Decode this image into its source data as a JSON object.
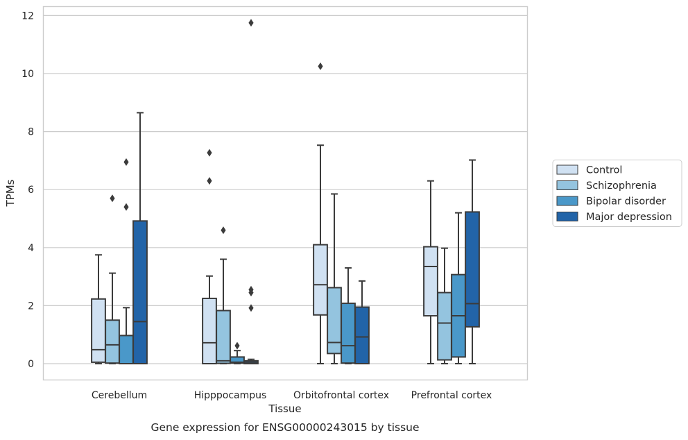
{
  "chart_data": {
    "type": "box",
    "caption": "Gene expression for ENSG00000243015 by tissue",
    "xlabel": "Tissue",
    "ylabel": "TPMs",
    "ylim": [
      -0.55,
      12.35
    ],
    "yticks": [
      0,
      2,
      4,
      6,
      8,
      10,
      12
    ],
    "ytick_labels": [
      "0",
      "2",
      "4",
      "6",
      "8",
      "10",
      "12"
    ],
    "grid": "horizontal",
    "legend_position": "right",
    "categories": [
      "Cerebellum",
      "Hipppocampus",
      "Orbitofrontal cortex",
      "Prefrontal cortex"
    ],
    "series": [
      {
        "name": "Control",
        "color": "#d0e1f2",
        "boxes": [
          {
            "whislo": 0.0,
            "q1": 0.05,
            "med": 0.48,
            "q3": 2.23,
            "whishi": 3.75,
            "fliers": []
          },
          {
            "whislo": 0.0,
            "q1": 0.0,
            "med": 0.72,
            "q3": 2.25,
            "whishi": 3.02,
            "fliers": [
              6.3,
              7.27
            ]
          },
          {
            "whislo": 0.0,
            "q1": 1.68,
            "med": 2.72,
            "q3": 4.1,
            "whishi": 7.53,
            "fliers": [
              10.25
            ]
          },
          {
            "whislo": 0.0,
            "q1": 1.65,
            "med": 3.35,
            "q3": 4.03,
            "whishi": 6.3,
            "fliers": []
          }
        ]
      },
      {
        "name": "Schizophrenia",
        "color": "#94c4df",
        "boxes": [
          {
            "whislo": 0.0,
            "q1": 0.02,
            "med": 0.65,
            "q3": 1.5,
            "whishi": 3.12,
            "fliers": [
              5.7
            ]
          },
          {
            "whislo": 0.0,
            "q1": 0.01,
            "med": 0.1,
            "q3": 1.83,
            "whishi": 3.6,
            "fliers": [
              4.6
            ]
          },
          {
            "whislo": 0.0,
            "q1": 0.35,
            "med": 0.73,
            "q3": 2.62,
            "whishi": 5.85,
            "fliers": []
          },
          {
            "whislo": 0.0,
            "q1": 0.13,
            "med": 1.4,
            "q3": 2.45,
            "whishi": 3.98,
            "fliers": []
          }
        ]
      },
      {
        "name": "Bipolar disorder",
        "color": "#4a98c9",
        "boxes": [
          {
            "whislo": 0.0,
            "q1": 0.0,
            "med": 0.0,
            "q3": 0.97,
            "whishi": 1.93,
            "fliers": [
              5.4,
              6.95
            ]
          },
          {
            "whislo": 0.0,
            "q1": 0.02,
            "med": 0.05,
            "q3": 0.23,
            "whishi": 0.45,
            "fliers": [
              0.62
            ]
          },
          {
            "whislo": 0.0,
            "q1": 0.02,
            "med": 0.62,
            "q3": 2.08,
            "whishi": 3.3,
            "fliers": []
          },
          {
            "whislo": 0.0,
            "q1": 0.23,
            "med": 1.65,
            "q3": 3.07,
            "whishi": 5.2,
            "fliers": []
          }
        ]
      },
      {
        "name": "Major depression",
        "color": "#2264a8",
        "boxes": [
          {
            "whislo": 0.0,
            "q1": 0.0,
            "med": 1.45,
            "q3": 4.92,
            "whishi": 8.65,
            "fliers": []
          },
          {
            "whislo": 0.0,
            "q1": 0.0,
            "med": 0.05,
            "q3": 0.1,
            "whishi": 0.15,
            "fliers": [
              1.92,
              2.45,
              2.55,
              11.75
            ]
          },
          {
            "whislo": 0.0,
            "q1": 0.0,
            "med": 0.92,
            "q3": 1.95,
            "whishi": 2.85,
            "fliers": []
          },
          {
            "whislo": 0.0,
            "q1": 1.27,
            "med": 2.07,
            "q3": 5.23,
            "whishi": 7.02,
            "fliers": []
          }
        ]
      }
    ]
  }
}
